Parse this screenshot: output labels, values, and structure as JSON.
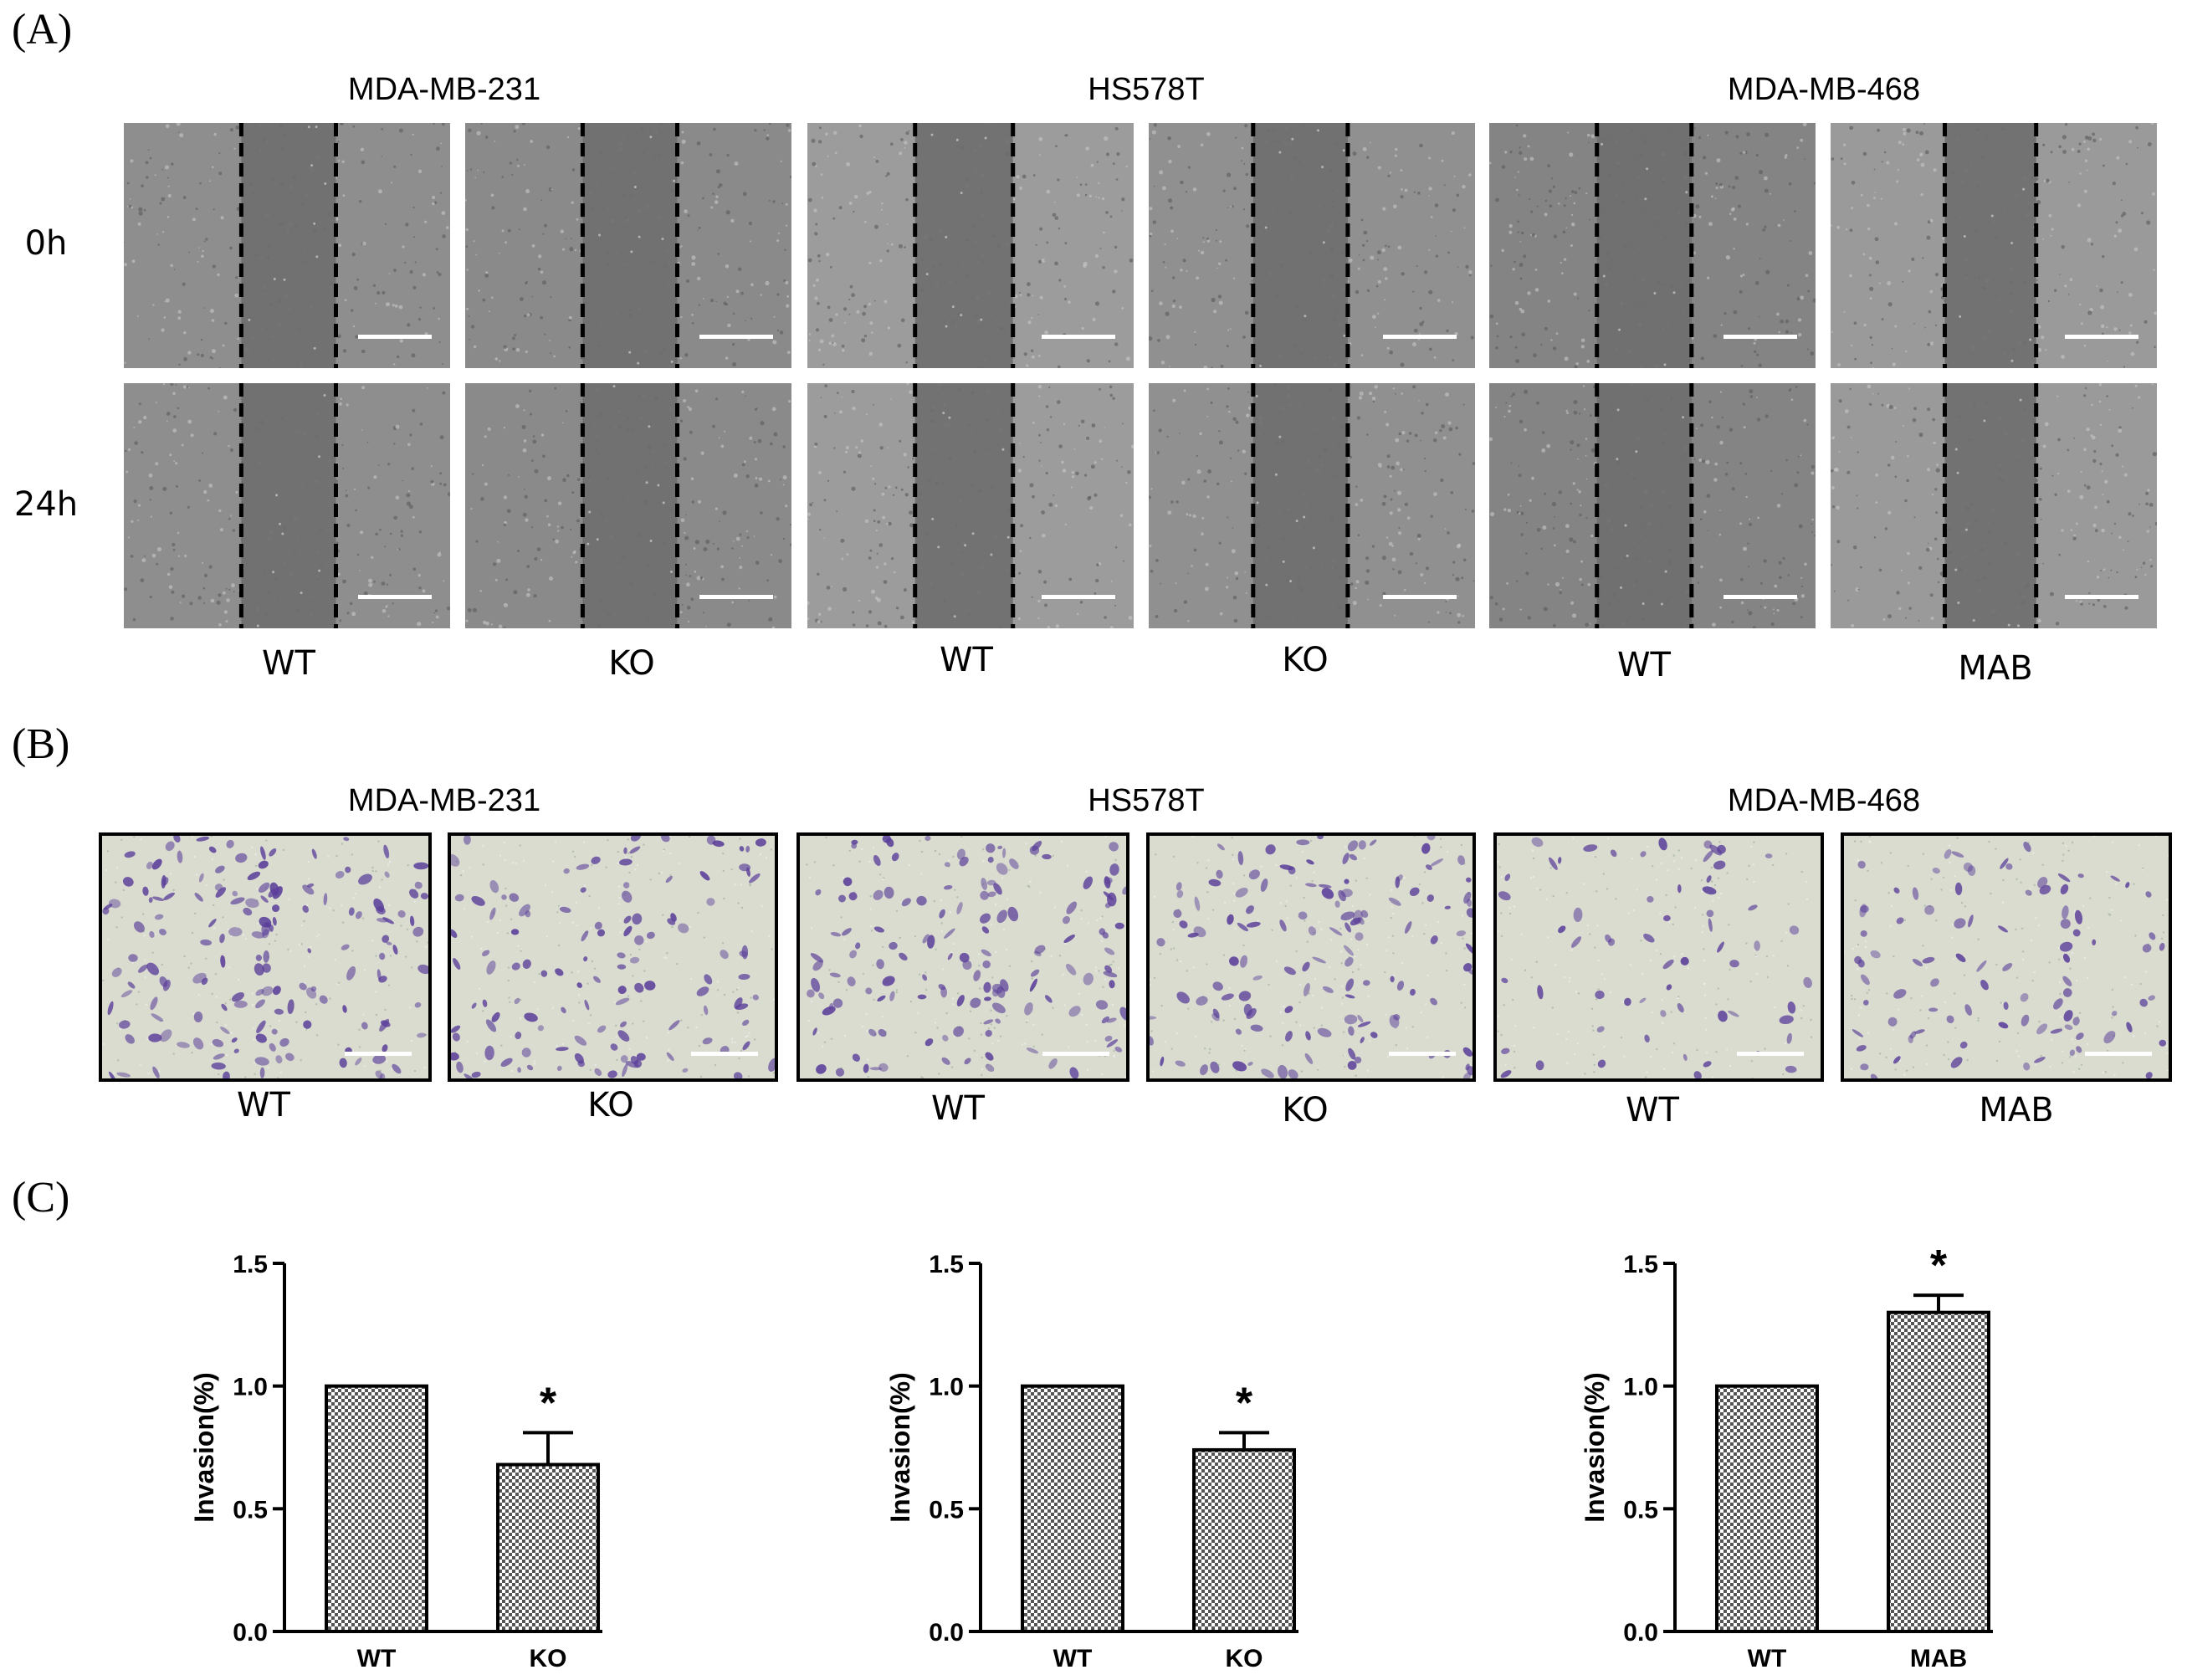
{
  "panels": {
    "a": {
      "letter": "(A)"
    },
    "b": {
      "letter": "(B)"
    },
    "c": {
      "letter": "(C)"
    }
  },
  "cell_lines": [
    "MDA-MB-231",
    "HS578T",
    "MDA-MB-468"
  ],
  "timepoints": [
    "0h",
    "24h"
  ],
  "conditions": [
    "WT",
    "KO",
    "WT",
    "KO",
    "WT",
    "MAB"
  ],
  "colors": {
    "scratch_gray": "#6e6e6e",
    "cells_gray": "#9a9a9a",
    "invasion_bg": "#d9dccf",
    "invasion_stain": "#5b3f9a",
    "bar_fill": "#555555"
  },
  "chart_data": [
    {
      "type": "bar",
      "title": "",
      "xlabel": "",
      "ylabel": "Invasion(%)",
      "categories": [
        "WT",
        "KO"
      ],
      "values": [
        1.0,
        0.68
      ],
      "error": [
        0,
        0.13
      ],
      "significance": [
        "",
        "*"
      ],
      "ylim": [
        0,
        1.5
      ],
      "yticks": [
        "0.0",
        "0.5",
        "1.0",
        "1.5"
      ],
      "pattern": "checkered"
    },
    {
      "type": "bar",
      "title": "",
      "xlabel": "",
      "ylabel": "Invasion(%)",
      "categories": [
        "WT",
        "KO"
      ],
      "values": [
        1.0,
        0.74
      ],
      "error": [
        0,
        0.07
      ],
      "significance": [
        "",
        "*"
      ],
      "ylim": [
        0,
        1.5
      ],
      "yticks": [
        "0.0",
        "0.5",
        "1.0",
        "1.5"
      ],
      "pattern": "checkered"
    },
    {
      "type": "bar",
      "title": "",
      "xlabel": "",
      "ylabel": "Invasion(%)",
      "categories": [
        "WT",
        "MAB"
      ],
      "values": [
        1.0,
        1.3
      ],
      "error": [
        0,
        0.07
      ],
      "significance": [
        "",
        "*"
      ],
      "ylim": [
        0,
        1.5
      ],
      "yticks": [
        "0.0",
        "0.5",
        "1.0",
        "1.5"
      ],
      "pattern": "checkered"
    }
  ]
}
